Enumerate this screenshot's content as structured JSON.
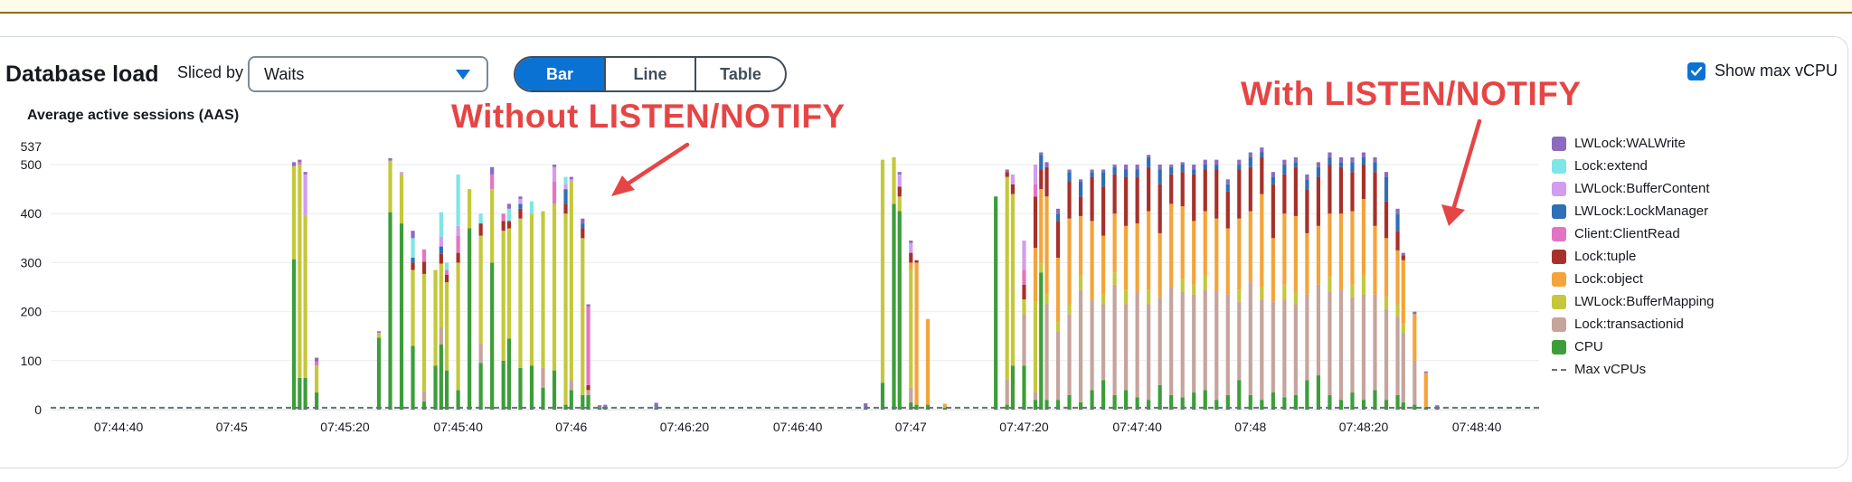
{
  "header": {
    "title": "Database load",
    "sliced_by_label": "Sliced by",
    "sliced_by_value": "Waits",
    "view_tabs": [
      {
        "label": "Bar",
        "active": true
      },
      {
        "label": "Line",
        "active": false
      },
      {
        "label": "Table",
        "active": false
      }
    ],
    "show_max_vcpu_label": "Show max vCPU",
    "show_max_vcpu_checked": true
  },
  "annotations": {
    "without": "Without LISTEN/NOTIFY",
    "with": "With LISTEN/NOTIFY",
    "color": "#e64545"
  },
  "chart_data": {
    "type": "bar",
    "stacked": true,
    "ylabel": "Average active sessions (AAS)",
    "yticks": [
      0,
      100,
      200,
      300,
      400,
      500
    ],
    "ymax_label": 537,
    "ylim": [
      0,
      537
    ],
    "grid": true,
    "legend_position": "right",
    "x_time_range": [
      "07:44:28",
      "07:48:51"
    ],
    "xticks": [
      "07:44:40",
      "07:45",
      "07:45:20",
      "07:45:40",
      "07:46",
      "07:46:20",
      "07:46:40",
      "07:47",
      "07:47:20",
      "07:47:40",
      "07:48",
      "07:48:20",
      "07:48:40"
    ],
    "max_vcpus": 4,
    "series_order": [
      "CPU",
      "Lock:transactionid",
      "LWLock:BufferMapping",
      "Lock:object",
      "Lock:tuple",
      "Client:ClientRead",
      "LWLock:LockManager",
      "LWLock:BufferContent",
      "Lock:extend",
      "LWLock:WALWrite"
    ],
    "legend": [
      {
        "name": "LWLock:WALWrite",
        "color": "#8c6bbf"
      },
      {
        "name": "Lock:extend",
        "color": "#7ee6e6"
      },
      {
        "name": "LWLock:BufferContent",
        "color": "#d29cf0"
      },
      {
        "name": "LWLock:LockManager",
        "color": "#2e6fb5"
      },
      {
        "name": "Client:ClientRead",
        "color": "#e374c4"
      },
      {
        "name": "Lock:tuple",
        "color": "#a8302a"
      },
      {
        "name": "Lock:object",
        "color": "#f4a43a"
      },
      {
        "name": "LWLock:BufferMapping",
        "color": "#c4c83a"
      },
      {
        "name": "Lock:transactionid",
        "color": "#c6a49c"
      },
      {
        "name": "CPU",
        "color": "#3d9d3a"
      }
    ],
    "max_vcpus_label": "Max vCPUs",
    "bars": [
      {
        "t": "07:45:11",
        "v": {
          "CPU": 307,
          "LWLock:BufferMapping": 190,
          "LWLock:WALWrite": 8
        }
      },
      {
        "t": "07:45:12",
        "v": {
          "CPU": 65,
          "LWLock:BufferMapping": 435,
          "Client:ClientRead": 5,
          "LWLock:WALWrite": 5
        }
      },
      {
        "t": "07:45:13",
        "v": {
          "CPU": 65,
          "LWLock:BufferMapping": 330,
          "LWLock:BufferContent": 85,
          "LWLock:WALWrite": 5
        }
      },
      {
        "t": "07:45:15",
        "v": {
          "CPU": 35,
          "LWLock:BufferMapping": 55,
          "Client:ClientRead": 8,
          "LWLock:WALWrite": 8
        }
      },
      {
        "t": "07:45:26",
        "v": {
          "CPU": 147,
          "LWLock:BufferMapping": 10,
          "LWLock:WALWrite": 3
        }
      },
      {
        "t": "07:45:28",
        "v": {
          "CPU": 403,
          "LWLock:BufferMapping": 105,
          "LWLock:WALWrite": 5
        }
      },
      {
        "t": "07:45:30",
        "v": {
          "CPU": 380,
          "LWLock:BufferMapping": 100,
          "LWLock:BufferContent": 5
        }
      },
      {
        "t": "07:45:32",
        "v": {
          "CPU": 130,
          "LWLock:BufferMapping": 155,
          "Lock:tuple": 15,
          "Lock:extend": 40,
          "LWLock:LockManager": 10,
          "LWLock:WALWrite": 15
        }
      },
      {
        "t": "07:45:34",
        "v": {
          "CPU": 17,
          "Lock:transactionid": 20,
          "LWLock:BufferMapping": 240,
          "Lock:tuple": 25,
          "Client:ClientRead": 25
        }
      },
      {
        "t": "07:45:36",
        "v": {
          "CPU": 90,
          "LWLock:BufferMapping": 195
        }
      },
      {
        "t": "07:45:37",
        "v": {
          "CPU": 133,
          "Lock:transactionid": 35,
          "LWLock:BufferMapping": 130,
          "Lock:tuple": 20,
          "LWLock:LockManager": 15,
          "Lock:extend": 50,
          "LWLock:BufferContent": 20
        }
      },
      {
        "t": "07:45:38",
        "v": {
          "CPU": 80,
          "LWLock:BufferMapping": 180,
          "Lock:tuple": 15,
          "Client:ClientRead": 10,
          "Lock:extend": 15
        }
      },
      {
        "t": "07:45:40",
        "v": {
          "CPU": 40,
          "LWLock:BufferMapping": 260,
          "Lock:tuple": 20,
          "Client:ClientRead": 35,
          "Lock:extend": 105,
          "LWLock:BufferContent": 20
        }
      },
      {
        "t": "07:45:42",
        "v": {
          "CPU": 370,
          "LWLock:BufferMapping": 80
        }
      },
      {
        "t": "07:45:44",
        "v": {
          "CPU": 95,
          "Lock:transactionid": 40,
          "LWLock:BufferMapping": 220,
          "Lock:tuple": 25,
          "Lock:extend": 20
        }
      },
      {
        "t": "07:45:46",
        "v": {
          "CPU": 300,
          "LWLock:BufferMapping": 150,
          "Client:ClientRead": 30,
          "LWLock:WALWrite": 15
        }
      },
      {
        "t": "07:45:48",
        "v": {
          "CPU": 100,
          "LWLock:BufferMapping": 265,
          "Lock:tuple": 20,
          "Client:ClientRead": 15
        }
      },
      {
        "t": "07:45:49",
        "v": {
          "CPU": 145,
          "LWLock:BufferMapping": 225,
          "Lock:tuple": 15,
          "Lock:extend": 25,
          "LWLock:WALWrite": 10
        }
      },
      {
        "t": "07:45:51",
        "v": {
          "CPU": 85,
          "LWLock:BufferMapping": 305,
          "Lock:tuple": 20,
          "LWLock:BufferContent": 10,
          "LWLock:LockManager": 10,
          "LWLock:WALWrite": 5
        }
      },
      {
        "t": "07:45:53",
        "v": {
          "CPU": 90,
          "LWLock:BufferMapping": 310,
          "Lock:extend": 25
        }
      },
      {
        "t": "07:45:55",
        "v": {
          "CPU": 45,
          "Lock:transactionid": 40,
          "LWLock:BufferMapping": 320
        }
      },
      {
        "t": "07:45:57",
        "v": {
          "CPU": 80,
          "LWLock:BufferMapping": 340,
          "Client:ClientRead": 45,
          "LWLock:BufferContent": 30,
          "LWLock:WALWrite": 5
        }
      },
      {
        "t": "07:45:59",
        "v": {
          "CPU": 10,
          "LWLock:BufferMapping": 390,
          "Lock:tuple": 20,
          "LWLock:LockManager": 30,
          "Lock:extend": 15,
          "LWLock:BufferContent": 10
        }
      },
      {
        "t": "07:46:00",
        "v": {
          "CPU": 40,
          "Lock:transactionid": 20,
          "LWLock:BufferMapping": 405,
          "LWLock:BufferContent": 5,
          "LWLock:WALWrite": 5
        }
      },
      {
        "t": "07:46:02",
        "v": {
          "CPU": 30,
          "LWLock:BufferMapping": 320,
          "Lock:tuple": 20,
          "LWLock:LockManager": 10,
          "LWLock:WALWrite": 10
        }
      },
      {
        "t": "07:46:03",
        "v": {
          "CPU": 30,
          "Lock:transactionid": 10,
          "Lock:tuple": 10,
          "Client:ClientRead": 160,
          "LWLock:WALWrite": 5
        }
      },
      {
        "t": "07:46:05",
        "v": {
          "CPU": 4,
          "LWLock:WALWrite": 5
        }
      },
      {
        "t": "07:46:06",
        "v": {
          "CPU": 4,
          "LWLock:WALWrite": 6
        }
      },
      {
        "t": "07:46:15",
        "v": {
          "CPU": 4,
          "LWLock:WALWrite": 10
        }
      },
      {
        "t": "07:46:52",
        "v": {
          "CPU": 3,
          "LWLock:WALWrite": 10
        }
      },
      {
        "t": "07:46:55",
        "v": {
          "CPU": 55,
          "LWLock:BufferMapping": 455
        }
      },
      {
        "t": "07:46:57",
        "v": {
          "CPU": 420,
          "LWLock:BufferMapping": 95
        }
      },
      {
        "t": "07:46:58",
        "v": {
          "CPU": 405,
          "LWLock:BufferMapping": 30,
          "Lock:tuple": 20,
          "LWLock:BufferContent": 25,
          "LWLock:WALWrite": 5
        }
      },
      {
        "t": "07:47:00",
        "v": {
          "CPU": 15,
          "Lock:transactionid": 30,
          "LWLock:BufferMapping": 240,
          "Lock:object": 15,
          "Lock:tuple": 20,
          "LWLock:BufferContent": 20,
          "LWLock:WALWrite": 5
        }
      },
      {
        "t": "07:47:01",
        "v": {
          "CPU": 10,
          "Lock:object": 290,
          "Lock:tuple": 5
        }
      },
      {
        "t": "07:47:03",
        "v": {
          "CPU": 10,
          "Lock:object": 175
        }
      },
      {
        "t": "07:47:06",
        "v": {
          "CPU": 4,
          "Lock:object": 8
        }
      },
      {
        "t": "07:47:15",
        "v": {
          "CPU": 435
        }
      },
      {
        "t": "07:47:17",
        "v": {
          "CPU": 10,
          "Lock:transactionid": 50,
          "LWLock:BufferMapping": 415,
          "Lock:tuple": 10,
          "LWLock:WALWrite": 5
        }
      },
      {
        "t": "07:47:18",
        "v": {
          "CPU": 90,
          "LWLock:BufferMapping": 350,
          "Lock:tuple": 20,
          "LWLock:BufferContent": 20
        }
      },
      {
        "t": "07:47:20",
        "v": {
          "CPU": 90,
          "Lock:transactionid": 105,
          "LWLock:BufferMapping": 30,
          "Lock:tuple": 30,
          "Client:ClientRead": 30,
          "LWLock:BufferContent": 60
        }
      },
      {
        "t": "07:47:22",
        "v": {
          "CPU": 20,
          "Lock:transactionid": 15,
          "LWLock:BufferMapping": 185,
          "Lock:object": 110,
          "Lock:tuple": 105,
          "Client:ClientRead": 25,
          "LWLock:BufferContent": 40
        }
      },
      {
        "t": "07:47:23",
        "v": {
          "CPU": 280,
          "LWLock:BufferMapping": 20,
          "Lock:object": 150,
          "Lock:tuple": 40,
          "LWLock:LockManager": 30,
          "LWLock:WALWrite": 5
        }
      },
      {
        "t": "07:47:24",
        "v": {
          "CPU": 20,
          "Lock:transactionid": 195,
          "LWLock:BufferMapping": 20,
          "Lock:object": 200,
          "Lock:tuple": 60,
          "LWLock:WALWrite": 10
        }
      },
      {
        "t": "07:47:26",
        "v": {
          "CPU": 20,
          "Lock:transactionid": 140,
          "LWLock:BufferMapping": 20,
          "Lock:object": 130,
          "Lock:tuple": 75,
          "LWLock:LockManager": 15,
          "LWLock:WALWrite": 10
        }
      },
      {
        "t": "07:47:28",
        "v": {
          "CPU": 30,
          "Lock:transactionid": 165,
          "LWLock:BufferMapping": 20,
          "Lock:object": 175,
          "Lock:tuple": 75,
          "LWLock:LockManager": 20,
          "LWLock:WALWrite": 5
        }
      },
      {
        "t": "07:47:30",
        "v": {
          "CPU": 15,
          "Lock:transactionid": 230,
          "LWLock:BufferMapping": 30,
          "Lock:object": 120,
          "Lock:tuple": 40,
          "LWLock:LockManager": 30,
          "LWLock:WALWrite": 5
        }
      },
      {
        "t": "07:47:32",
        "v": {
          "CPU": 40,
          "Lock:transactionid": 185,
          "Lock:object": 160,
          "Lock:tuple": 90,
          "LWLock:LockManager": 10,
          "LWLock:WALWrite": 5
        }
      },
      {
        "t": "07:47:34",
        "v": {
          "CPU": 60,
          "Lock:transactionid": 155,
          "LWLock:BufferMapping": 20,
          "Lock:object": 120,
          "Lock:tuple": 100,
          "LWLock:LockManager": 30,
          "LWLock:WALWrite": 5
        }
      },
      {
        "t": "07:47:36",
        "v": {
          "CPU": 30,
          "Lock:transactionid": 225,
          "LWLock:BufferMapping": 25,
          "Lock:object": 120,
          "Lock:tuple": 80,
          "LWLock:LockManager": 15,
          "LWLock:WALWrite": 5
        }
      },
      {
        "t": "07:47:38",
        "v": {
          "CPU": 40,
          "Lock:transactionid": 175,
          "LWLock:BufferMapping": 30,
          "Lock:object": 130,
          "Lock:tuple": 100,
          "LWLock:LockManager": 15,
          "LWLock:WALWrite": 10
        }
      },
      {
        "t": "07:47:40",
        "v": {
          "CPU": 25,
          "Lock:transactionid": 215,
          "Lock:object": 140,
          "Lock:tuple": 95,
          "LWLock:LockManager": 15,
          "LWLock:WALWrite": 10
        }
      },
      {
        "t": "07:47:42",
        "v": {
          "CPU": 20,
          "Lock:transactionid": 195,
          "LWLock:BufferMapping": 30,
          "Lock:object": 160,
          "Lock:tuple": 90,
          "LWLock:LockManager": 20,
          "LWLock:WALWrite": 5
        }
      },
      {
        "t": "07:47:44",
        "v": {
          "CPU": 50,
          "Lock:transactionid": 180,
          "Lock:object": 130,
          "Lock:tuple": 100,
          "LWLock:LockManager": 30,
          "LWLock:WALWrite": 10
        }
      },
      {
        "t": "07:47:46",
        "v": {
          "CPU": 30,
          "Lock:transactionid": 220,
          "Lock:object": 170,
          "Lock:tuple": 60,
          "LWLock:LockManager": 15,
          "LWLock:WALWrite": 5
        }
      },
      {
        "t": "07:47:48",
        "v": {
          "CPU": 25,
          "Lock:transactionid": 215,
          "LWLock:BufferMapping": 25,
          "Lock:object": 150,
          "Lock:tuple": 70,
          "LWLock:LockManager": 15,
          "LWLock:WALWrite": 5
        }
      },
      {
        "t": "07:47:50",
        "v": {
          "CPU": 35,
          "Lock:transactionid": 200,
          "LWLock:BufferMapping": 20,
          "Lock:object": 130,
          "Lock:tuple": 95,
          "LWLock:LockManager": 10,
          "LWLock:WALWrite": 10
        }
      },
      {
        "t": "07:47:52",
        "v": {
          "CPU": 40,
          "Lock:transactionid": 205,
          "LWLock:BufferMapping": 30,
          "Lock:object": 130,
          "Lock:tuple": 85,
          "LWLock:LockManager": 10,
          "LWLock:WALWrite": 10
        }
      },
      {
        "t": "07:47:54",
        "v": {
          "CPU": 20,
          "Lock:transactionid": 220,
          "Lock:object": 150,
          "Lock:tuple": 100,
          "LWLock:LockManager": 10,
          "LWLock:WALWrite": 10
        }
      },
      {
        "t": "07:47:56",
        "v": {
          "CPU": 30,
          "Lock:transactionid": 205,
          "Lock:object": 135,
          "Lock:tuple": 75,
          "LWLock:LockManager": 15,
          "LWLock:WALWrite": 10
        }
      },
      {
        "t": "07:47:58",
        "v": {
          "CPU": 60,
          "Lock:transactionid": 160,
          "LWLock:BufferMapping": 25,
          "Lock:object": 145,
          "Lock:tuple": 100,
          "LWLock:LockManager": 10,
          "LWLock:WALWrite": 10
        }
      },
      {
        "t": "07:48:00",
        "v": {
          "CPU": 30,
          "Lock:transactionid": 230,
          "Lock:object": 145,
          "Lock:tuple": 90,
          "LWLock:LockManager": 20,
          "LWLock:WALWrite": 10
        }
      },
      {
        "t": "07:48:02",
        "v": {
          "CPU": 20,
          "Lock:transactionid": 205,
          "LWLock:BufferMapping": 25,
          "Lock:object": 190,
          "Lock:tuple": 75,
          "LWLock:LockManager": 10,
          "LWLock:WALWrite": 10
        }
      },
      {
        "t": "07:48:04",
        "v": {
          "CPU": 35,
          "Lock:transactionid": 185,
          "Lock:object": 130,
          "Lock:tuple": 110,
          "LWLock:LockManager": 15,
          "LWLock:WALWrite": 10
        }
      },
      {
        "t": "07:48:06",
        "v": {
          "CPU": 25,
          "Lock:transactionid": 200,
          "LWLock:BufferMapping": 30,
          "Lock:object": 145,
          "Lock:tuple": 80,
          "LWLock:LockManager": 20,
          "LWLock:WALWrite": 10
        }
      },
      {
        "t": "07:48:08",
        "v": {
          "CPU": 30,
          "Lock:transactionid": 185,
          "LWLock:BufferMapping": 25,
          "Lock:object": 155,
          "Lock:tuple": 100,
          "LWLock:LockManager": 10,
          "LWLock:WALWrite": 10
        }
      },
      {
        "t": "07:48:10",
        "v": {
          "CPU": 60,
          "Lock:transactionid": 175,
          "Lock:object": 125,
          "Lock:tuple": 90,
          "LWLock:LockManager": 20,
          "LWLock:WALWrite": 10
        }
      },
      {
        "t": "07:48:12",
        "v": {
          "CPU": 70,
          "Lock:transactionid": 185,
          "Lock:object": 120,
          "Lock:tuple": 100,
          "LWLock:LockManager": 20,
          "LWLock:WALWrite": 10
        }
      },
      {
        "t": "07:48:14",
        "v": {
          "CPU": 30,
          "Lock:transactionid": 210,
          "LWLock:BufferMapping": 30,
          "Lock:object": 130,
          "Lock:tuple": 100,
          "LWLock:LockManager": 15,
          "LWLock:WALWrite": 10
        }
      },
      {
        "t": "07:48:16",
        "v": {
          "CPU": 20,
          "Lock:transactionid": 225,
          "Lock:object": 155,
          "Lock:tuple": 95,
          "LWLock:LockManager": 10,
          "LWLock:WALWrite": 10
        }
      },
      {
        "t": "07:48:18",
        "v": {
          "CPU": 35,
          "Lock:transactionid": 195,
          "LWLock:BufferMapping": 25,
          "Lock:object": 150,
          "Lock:tuple": 80,
          "LWLock:LockManager": 20,
          "LWLock:WALWrite": 10
        }
      },
      {
        "t": "07:48:20",
        "v": {
          "CPU": 20,
          "Lock:transactionid": 215,
          "LWLock:BufferMapping": 40,
          "Lock:object": 155,
          "Lock:tuple": 70,
          "LWLock:LockManager": 15,
          "LWLock:WALWrite": 10
        }
      },
      {
        "t": "07:48:22",
        "v": {
          "CPU": 40,
          "Lock:transactionid": 195,
          "Lock:object": 140,
          "Lock:tuple": 110,
          "LWLock:LockManager": 20,
          "LWLock:WALWrite": 10
        }
      },
      {
        "t": "07:48:24",
        "v": {
          "CPU": 20,
          "Lock:transactionid": 185,
          "LWLock:BufferMapping": 25,
          "Lock:object": 120,
          "Lock:tuple": 75,
          "LWLock:LockManager": 50,
          "LWLock:WALWrite": 10
        }
      },
      {
        "t": "07:48:26",
        "v": {
          "CPU": 30,
          "Lock:transactionid": 160,
          "LWLock:BufferMapping": 25,
          "Lock:object": 110,
          "Lock:tuple": 40,
          "LWLock:LockManager": 35,
          "LWLock:WALWrite": 10
        }
      },
      {
        "t": "07:48:27",
        "v": {
          "CPU": 15,
          "Lock:transactionid": 140,
          "LWLock:BufferMapping": 20,
          "Lock:object": 130,
          "Lock:tuple": 10,
          "LWLock:WALWrite": 5
        }
      },
      {
        "t": "07:48:29",
        "v": {
          "CPU": 10,
          "Lock:transactionid": 90,
          "Lock:object": 95,
          "LWLock:WALWrite": 5
        }
      },
      {
        "t": "07:48:31",
        "v": {
          "CPU": 5,
          "Lock:object": 70,
          "LWLock:WALWrite": 3
        }
      },
      {
        "t": "07:48:33",
        "v": {
          "CPU": 4,
          "LWLock:WALWrite": 5
        }
      }
    ]
  }
}
